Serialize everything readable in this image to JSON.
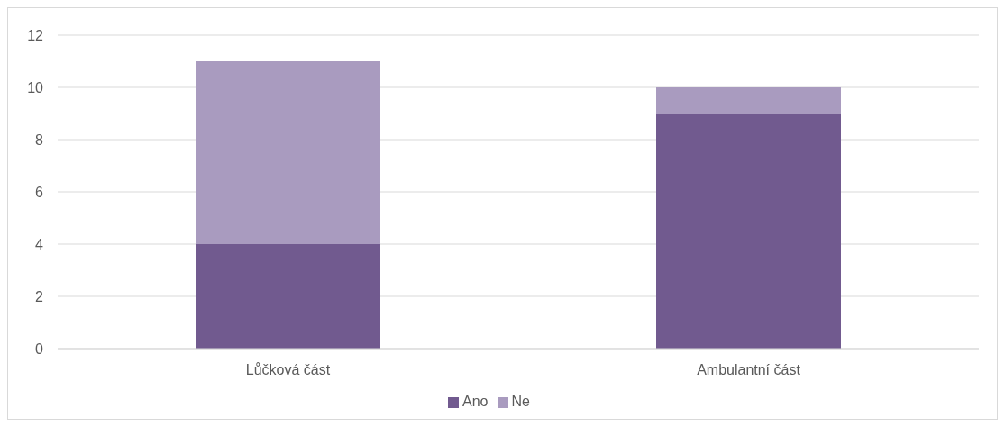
{
  "chart_data": {
    "type": "bar",
    "stacked": true,
    "categories": [
      "Lůčková část",
      "Ambulantní část"
    ],
    "series": [
      {
        "name": "Ano",
        "color": "#715a8f",
        "values": [
          4,
          9
        ]
      },
      {
        "name": "Ne",
        "color": "#a99bbf",
        "values": [
          7,
          1
        ]
      }
    ],
    "ylim": [
      0,
      12
    ],
    "yticks": [
      0,
      2,
      4,
      6,
      8,
      10,
      12
    ],
    "grid": "y",
    "legend": "bottom"
  }
}
